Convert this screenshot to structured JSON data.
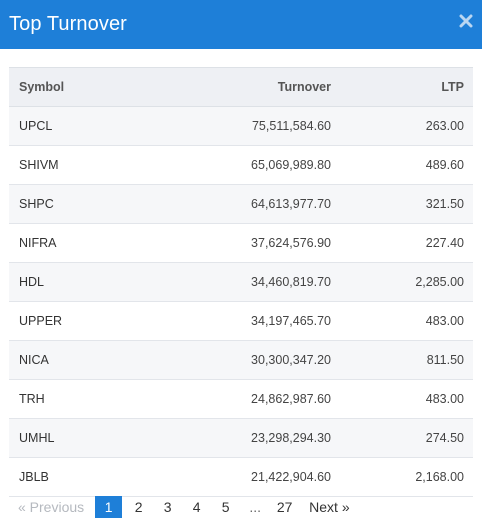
{
  "header": {
    "title": "Top Turnover",
    "close_icon": "close-icon"
  },
  "table": {
    "columns": {
      "symbol": "Symbol",
      "turnover": "Turnover",
      "ltp": "LTP"
    },
    "rows": [
      {
        "symbol": "UPCL",
        "turnover": "75,511,584.60",
        "ltp": "263.00"
      },
      {
        "symbol": "SHIVM",
        "turnover": "65,069,989.80",
        "ltp": "489.60"
      },
      {
        "symbol": "SHPC",
        "turnover": "64,613,977.70",
        "ltp": "321.50"
      },
      {
        "symbol": "NIFRA",
        "turnover": "37,624,576.90",
        "ltp": "227.40"
      },
      {
        "symbol": "HDL",
        "turnover": "34,460,819.70",
        "ltp": "2,285.00"
      },
      {
        "symbol": "UPPER",
        "turnover": "34,197,465.70",
        "ltp": "483.00"
      },
      {
        "symbol": "NICA",
        "turnover": "30,300,347.20",
        "ltp": "811.50"
      },
      {
        "symbol": "TRH",
        "turnover": "24,862,987.60",
        "ltp": "483.00"
      },
      {
        "symbol": "UMHL",
        "turnover": "23,298,294.30",
        "ltp": "274.50"
      },
      {
        "symbol": "JBLB",
        "turnover": "21,422,904.60",
        "ltp": "2,168.00"
      }
    ]
  },
  "pagination": {
    "previous_label": "« Previous",
    "pages": [
      "1",
      "2",
      "3",
      "4",
      "5"
    ],
    "active_page": "1",
    "ellipsis": "...",
    "last_page": "27",
    "next_label": "Next »"
  },
  "colors": {
    "header_bg": "#1e7fd8",
    "active_page_bg": "#1e7fd8"
  }
}
